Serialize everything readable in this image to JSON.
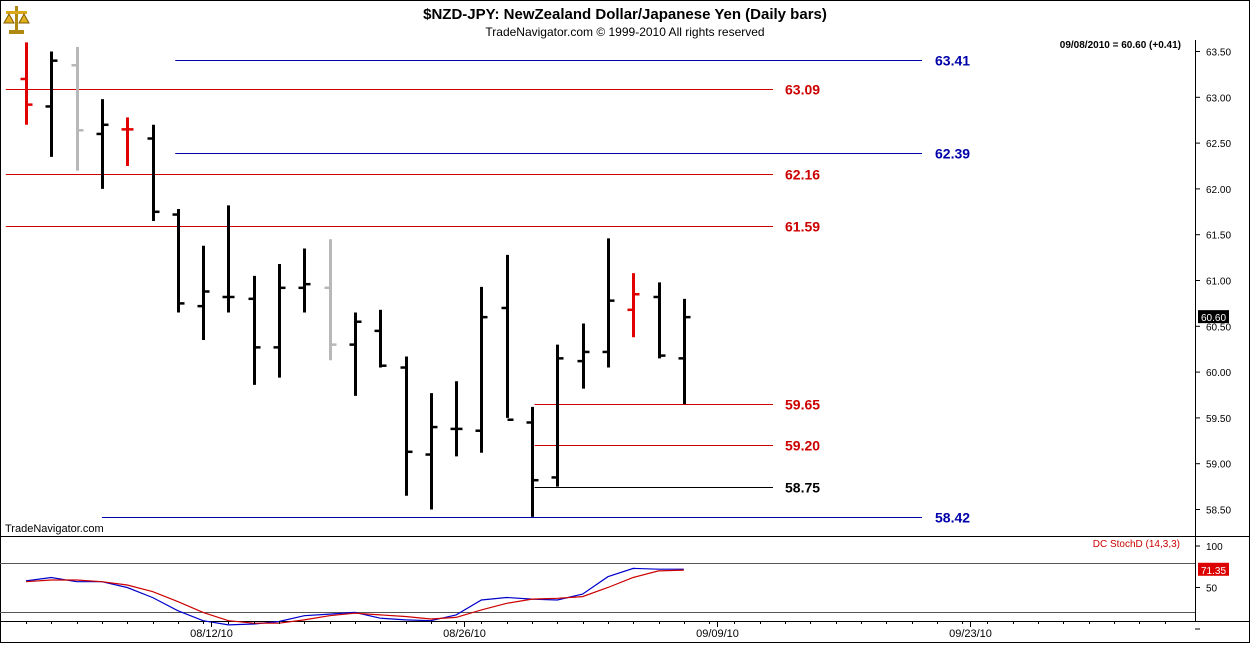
{
  "header": {
    "title": "$NZD-JPY:  NewZealand Dollar/Japanese Yen  (Daily bars)",
    "copyright": "TradeNavigator.com © 1999-2010 All rights reserved",
    "last_info": "09/08/2010 = 60.60 (+0.41)",
    "watermark": "TradeNavigator.com",
    "logo_icon": "scales-icon"
  },
  "colors": {
    "up": "#000000",
    "down_red": "#e00000",
    "gray": "#b8b8b8",
    "blue_level": "#0000aa",
    "red_level": "#cc0000",
    "black_level": "#000000",
    "stoch_k": "#0000cc",
    "stoch_d": "#cc0000"
  },
  "chart_data": [
    {
      "type": "ohlc",
      "title": "$NZD-JPY:  NewZealand Dollar/Japanese Yen  (Daily bars)",
      "ylim": [
        58.3,
        63.55
      ],
      "y_ticks": [
        "63.50",
        "63.00",
        "62.50",
        "62.00",
        "61.50",
        "61.00",
        "60.50",
        "60.00",
        "59.50",
        "59.00",
        "58.50"
      ],
      "last_value_label": "60.60",
      "last_value": 60.6,
      "x_ticks": [
        {
          "label": "08/12/10",
          "bar": 7.3
        },
        {
          "label": "08/26/10",
          "bar": 17.3
        },
        {
          "label": "09/09/10",
          "bar": 27.3
        },
        {
          "label": "09/23/10",
          "bar": 37.3
        }
      ],
      "bars": [
        {
          "o": 63.2,
          "h": 63.6,
          "l": 62.7,
          "c": 62.92,
          "color": "down_red"
        },
        {
          "o": 62.9,
          "h": 63.5,
          "l": 62.35,
          "c": 63.4,
          "color": "up"
        },
        {
          "o": 63.35,
          "h": 63.55,
          "l": 62.2,
          "c": 62.64,
          "color": "gray"
        },
        {
          "o": 62.6,
          "h": 62.98,
          "l": 62.0,
          "c": 62.7,
          "color": "up"
        },
        {
          "o": 62.65,
          "h": 62.78,
          "l": 62.25,
          "c": 62.65,
          "color": "down_red"
        },
        {
          "o": 62.55,
          "h": 62.7,
          "l": 61.65,
          "c": 61.75,
          "color": "up"
        },
        {
          "o": 61.72,
          "h": 61.78,
          "l": 60.65,
          "c": 60.75,
          "color": "up"
        },
        {
          "o": 60.72,
          "h": 61.38,
          "l": 60.35,
          "c": 60.88,
          "color": "up"
        },
        {
          "o": 60.82,
          "h": 61.82,
          "l": 60.65,
          "c": 60.82,
          "color": "up"
        },
        {
          "o": 60.8,
          "h": 61.05,
          "l": 59.86,
          "c": 60.27,
          "color": "up"
        },
        {
          "o": 60.27,
          "h": 61.18,
          "l": 59.94,
          "c": 60.92,
          "color": "up"
        },
        {
          "o": 60.92,
          "h": 61.35,
          "l": 60.65,
          "c": 60.96,
          "color": "up"
        },
        {
          "o": 60.92,
          "h": 61.45,
          "l": 60.13,
          "c": 60.3,
          "color": "gray"
        },
        {
          "o": 60.3,
          "h": 60.65,
          "l": 59.74,
          "c": 60.55,
          "color": "up"
        },
        {
          "o": 60.45,
          "h": 60.68,
          "l": 60.05,
          "c": 60.07,
          "color": "up"
        },
        {
          "o": 60.05,
          "h": 60.17,
          "l": 58.65,
          "c": 59.13,
          "color": "up"
        },
        {
          "o": 59.1,
          "h": 59.77,
          "l": 58.5,
          "c": 59.4,
          "color": "up"
        },
        {
          "o": 59.38,
          "h": 59.9,
          "l": 59.08,
          "c": 59.38,
          "color": "up"
        },
        {
          "o": 59.36,
          "h": 60.93,
          "l": 59.12,
          "c": 60.6,
          "color": "up"
        },
        {
          "o": 60.7,
          "h": 61.28,
          "l": 59.5,
          "c": 59.48,
          "color": "up"
        },
        {
          "o": 59.45,
          "h": 59.62,
          "l": 58.42,
          "c": 58.82,
          "color": "up"
        },
        {
          "o": 58.85,
          "h": 60.3,
          "l": 58.75,
          "c": 60.15,
          "color": "up"
        },
        {
          "o": 60.12,
          "h": 60.53,
          "l": 59.82,
          "c": 60.22,
          "color": "up"
        },
        {
          "o": 60.22,
          "h": 61.46,
          "l": 60.05,
          "c": 60.78,
          "color": "up"
        },
        {
          "o": 60.68,
          "h": 61.08,
          "l": 60.38,
          "c": 60.85,
          "color": "down_red"
        },
        {
          "o": 60.82,
          "h": 60.98,
          "l": 60.15,
          "c": 60.18,
          "color": "up"
        },
        {
          "o": 60.15,
          "h": 60.8,
          "l": 59.65,
          "c": 60.6,
          "color": "up"
        }
      ],
      "levels": [
        {
          "label": "63.41",
          "value": 63.41,
          "color": "blue_level",
          "x_start_bar": 5.9
        },
        {
          "label": "63.09",
          "value": 63.09,
          "color": "red_level",
          "x_start_bar": -0.8
        },
        {
          "label": "62.39",
          "value": 62.39,
          "color": "blue_level",
          "x_start_bar": 5.9
        },
        {
          "label": "62.16",
          "value": 62.16,
          "color": "red_level",
          "x_start_bar": -0.8
        },
        {
          "label": "61.59",
          "value": 61.59,
          "color": "red_level",
          "x_start_bar": -0.8
        },
        {
          "label": "59.65",
          "value": 59.65,
          "color": "red_level",
          "x_start_bar": 20.1
        },
        {
          "label": "59.20",
          "value": 59.2,
          "color": "red_level",
          "x_start_bar": 20.1
        },
        {
          "label": "58.75",
          "value": 58.75,
          "color": "black_level",
          "x_start_bar": 20.1
        },
        {
          "label": "58.42",
          "value": 58.42,
          "color": "blue_level",
          "x_start_bar": 3.0
        }
      ]
    },
    {
      "type": "line",
      "title": "DC StochD (14,3,3)",
      "ylim": [
        0,
        100
      ],
      "y_ticks": [
        "100",
        "50",
        "0"
      ],
      "ref_levels": [
        80,
        20
      ],
      "last_value_label": "71.35",
      "last_value": 71.35,
      "series": [
        {
          "key": "k",
          "color": "stoch_k",
          "values": [
            58,
            62,
            57,
            57,
            50,
            38,
            22,
            10,
            5,
            6,
            9,
            16,
            18,
            20,
            13,
            11,
            10,
            17,
            35,
            38,
            36,
            35,
            42,
            63,
            73,
            72,
            72
          ]
        },
        {
          "key": "d",
          "color": "stoch_d",
          "values": [
            57,
            59,
            59,
            57,
            53,
            45,
            33,
            20,
            10,
            7,
            7,
            11,
            16,
            19,
            17,
            15,
            12,
            14,
            23,
            31,
            36,
            37,
            39,
            50,
            62,
            70,
            71
          ]
        }
      ]
    }
  ]
}
